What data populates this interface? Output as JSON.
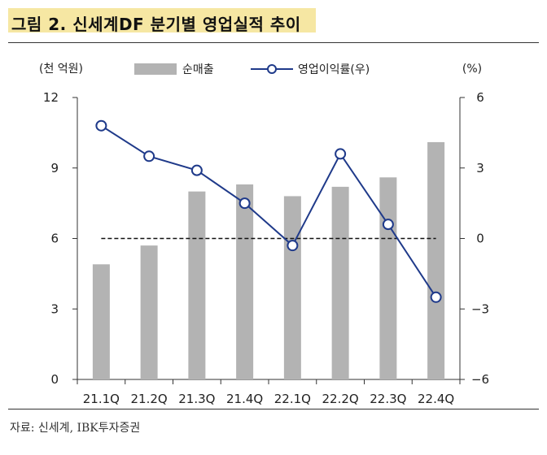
{
  "title": "그림 2. 신세계DF 분기별 영업실적 추이",
  "source": "자료: 신세계, IBK투자증권",
  "chart_data": {
    "type": "bar+line",
    "categories": [
      "21.1Q",
      "21.2Q",
      "21.3Q",
      "21.4Q",
      "22.1Q",
      "22.2Q",
      "22.3Q",
      "22.4Q"
    ],
    "left_axis": {
      "unit": "(천 억원)",
      "ylim": [
        0,
        12
      ],
      "ticks": [
        "0",
        "3",
        "6",
        "9",
        "12"
      ]
    },
    "right_axis": {
      "unit": "(%)",
      "ylim": [
        -6,
        6
      ],
      "ticks": [
        "−6",
        "−3",
        "0",
        "3",
        "6"
      ]
    },
    "series": [
      {
        "name": "순매출",
        "type": "bar",
        "axis": "left",
        "color": "#b3b3b3",
        "values": [
          4.9,
          5.7,
          8.0,
          8.3,
          7.8,
          8.2,
          8.6,
          10.1
        ]
      },
      {
        "name": "영업이익률(우)",
        "type": "line",
        "axis": "right",
        "color": "#1f3a8a",
        "values": [
          4.8,
          3.5,
          2.9,
          1.5,
          -0.3,
          3.6,
          0.6,
          -2.5
        ]
      }
    ],
    "reference_line": {
      "axis": "right",
      "value": 0,
      "style": "dashed"
    },
    "legend": "top"
  }
}
